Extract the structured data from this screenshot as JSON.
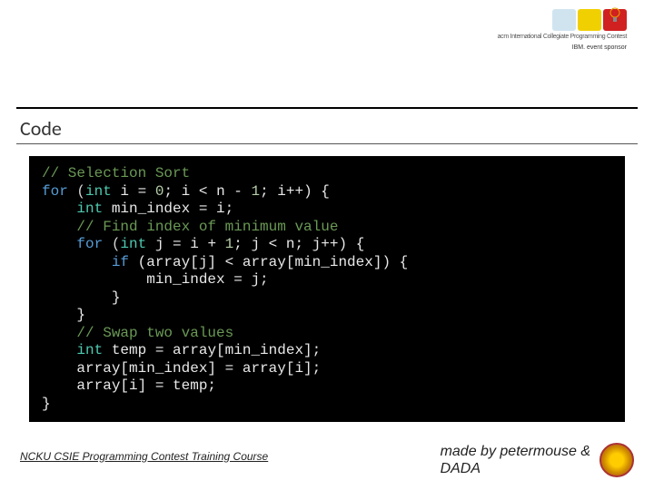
{
  "title": "Code",
  "logos": {
    "squares": [
      {
        "bg": "#d0e4f0"
      },
      {
        "bg": "#f0d000"
      },
      {
        "bg": "#d02020"
      }
    ],
    "acm_line": "acm International Collegiate Programming Contest",
    "ibm_line": "IBM.  event sponsor"
  },
  "code": {
    "background": "#000000",
    "lines": [
      [
        {
          "t": "// Selection Sort",
          "c": "c-comment"
        }
      ],
      [
        {
          "t": "for",
          "c": "c-keyword"
        },
        {
          "t": " (",
          "c": "c-op"
        },
        {
          "t": "int",
          "c": "c-type"
        },
        {
          "t": " i = ",
          "c": "c-ident"
        },
        {
          "t": "0",
          "c": "c-num"
        },
        {
          "t": "; i < n - ",
          "c": "c-ident"
        },
        {
          "t": "1",
          "c": "c-num"
        },
        {
          "t": "; i++) {",
          "c": "c-ident"
        }
      ],
      [
        {
          "t": "    ",
          "c": "c-op"
        },
        {
          "t": "int",
          "c": "c-type"
        },
        {
          "t": " min_index = i;",
          "c": "c-ident"
        }
      ],
      [
        {
          "t": "    ",
          "c": "c-op"
        },
        {
          "t": "// Find index of minimum value",
          "c": "c-comment"
        }
      ],
      [
        {
          "t": "    ",
          "c": "c-op"
        },
        {
          "t": "for",
          "c": "c-keyword"
        },
        {
          "t": " (",
          "c": "c-op"
        },
        {
          "t": "int",
          "c": "c-type"
        },
        {
          "t": " j = i + ",
          "c": "c-ident"
        },
        {
          "t": "1",
          "c": "c-num"
        },
        {
          "t": "; j < n; j++) {",
          "c": "c-ident"
        }
      ],
      [
        {
          "t": "        ",
          "c": "c-op"
        },
        {
          "t": "if",
          "c": "c-keyword"
        },
        {
          "t": " (array[j] < array[min_index]) {",
          "c": "c-ident"
        }
      ],
      [
        {
          "t": "            min_index = j;",
          "c": "c-ident"
        }
      ],
      [
        {
          "t": "        }",
          "c": "c-ident"
        }
      ],
      [
        {
          "t": "    }",
          "c": "c-ident"
        }
      ],
      [
        {
          "t": "    ",
          "c": "c-op"
        },
        {
          "t": "// Swap two values",
          "c": "c-comment"
        }
      ],
      [
        {
          "t": "    ",
          "c": "c-op"
        },
        {
          "t": "int",
          "c": "c-type"
        },
        {
          "t": " temp = array[min_index];",
          "c": "c-ident"
        }
      ],
      [
        {
          "t": "    array[min_index] = array[i];",
          "c": "c-ident"
        }
      ],
      [
        {
          "t": "    array[i] = temp;",
          "c": "c-ident"
        }
      ],
      [
        {
          "t": "}",
          "c": "c-ident"
        }
      ]
    ]
  },
  "footer": {
    "left": "NCKU CSIE Programming Contest Training Course",
    "right_line1": "made by petermouse &",
    "right_line2": "DADA"
  }
}
